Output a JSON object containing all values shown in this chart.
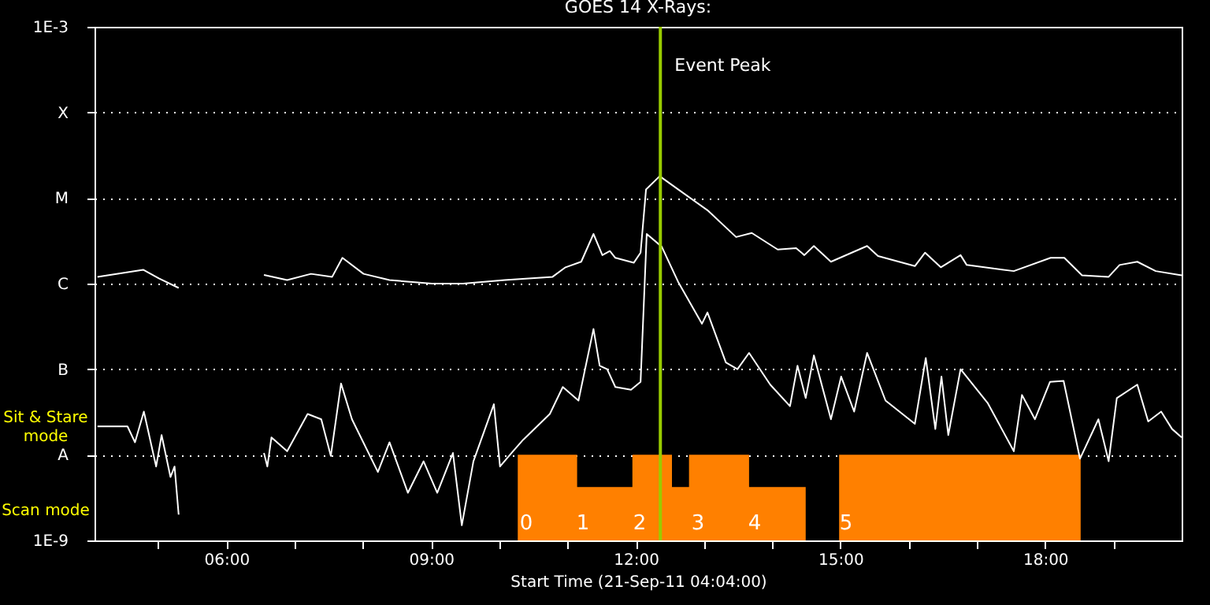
{
  "chart_data": {
    "type": "line",
    "title": "GOES 14 X-Rays:",
    "xlabel": "Start Time (21-Sep-11 04:04:00)",
    "xlim": [
      4.067,
      20.0
    ],
    "xticks": [
      {
        "value": 5,
        "label": null
      },
      {
        "value": 6,
        "label": "06:00"
      },
      {
        "value": 7,
        "label": null
      },
      {
        "value": 8,
        "label": null
      },
      {
        "value": 9,
        "label": "09:00"
      },
      {
        "value": 10,
        "label": null
      },
      {
        "value": 11,
        "label": null
      },
      {
        "value": 12,
        "label": "12:00"
      },
      {
        "value": 13,
        "label": null
      },
      {
        "value": 14,
        "label": null
      },
      {
        "value": 15,
        "label": "15:00"
      },
      {
        "value": 16,
        "label": null
      },
      {
        "value": 17,
        "label": null
      },
      {
        "value": 18,
        "label": "18:00"
      },
      {
        "value": 19,
        "label": null
      }
    ],
    "ylim": [
      1e-09,
      0.001
    ],
    "yticks": [
      {
        "value": 1e-09,
        "label": "1E-9"
      },
      {
        "value": 1e-08,
        "label": "A"
      },
      {
        "value": 1e-07,
        "label": "B"
      },
      {
        "value": 1e-06,
        "label": "C"
      },
      {
        "value": 1e-05,
        "label": "M"
      },
      {
        "value": 0.0001,
        "label": "X"
      },
      {
        "value": 0.001,
        "label": "1E-3"
      }
    ],
    "log": "y",
    "grid": "y",
    "series": [
      {
        "type": "area",
        "color": "#ff8000",
        "x": [
          10.27,
          11.14,
          11.95,
          12.53,
          12.78,
          13.66,
          14.49,
          14.7,
          14.98,
          18.52
        ],
        "values": [
          1e-08,
          4.2e-09,
          1e-08,
          4.2e-09,
          1e-08,
          4.2e-09,
          4.2e-09,
          null,
          1e-08,
          1e-08
        ]
      },
      {
        "color": "#ffffff",
        "x": [
          4.11,
          4.78,
          5.01,
          5.3,
          5.9,
          6.55,
          6.89,
          7.24,
          7.55,
          7.7,
          8.01,
          8.39,
          9.01,
          9.47,
          10.08,
          10.78,
          10.97,
          11.2,
          11.38,
          11.51,
          11.62,
          11.7,
          11.97,
          12.07,
          12.15,
          12.35,
          12.62,
          13.05,
          13.47,
          13.7,
          14.08,
          14.35,
          14.47,
          14.61,
          14.86,
          15.39,
          15.55,
          16.09,
          16.24,
          16.47,
          16.76,
          16.85,
          17.54,
          18.08,
          18.28,
          18.54,
          18.93,
          19.09,
          19.35,
          19.62,
          20.0
        ],
        "values": [
          1.2e-06,
          1.45e-06,
          1.15e-06,
          8.9e-07,
          null,
          1.26e-06,
          1.1e-06,
          1.3e-06,
          1.2e-06,
          2e-06,
          1.3e-06,
          1.1e-06,
          1e-06,
          1e-06,
          1.1e-06,
          1.2e-06,
          1.55e-06,
          1.8e-06,
          3.8e-06,
          2.15e-06,
          2.4e-06,
          2e-06,
          1.75e-06,
          2.3e-06,
          1.26e-05,
          1.8e-05,
          1.26e-05,
          7.2e-06,
          3.5e-06,
          3.9e-06,
          2.5e-06,
          2.6e-06,
          2.15e-06,
          2.75e-06,
          1.8e-06,
          2.75e-06,
          2.1e-06,
          1.6e-06,
          2.3e-06,
          1.55e-06,
          2.15e-06,
          1.65e-06,
          1.4e-06,
          2e-06,
          2e-06,
          1.25e-06,
          1.2e-06,
          1.65e-06,
          1.8e-06,
          1.4e-06,
          1.25e-06
        ]
      },
      {
        "color": "#ffffff",
        "x": [
          4.11,
          4.55,
          4.66,
          4.79,
          4.97,
          5.05,
          5.18,
          5.24,
          5.3,
          5.9,
          6.55,
          6.6,
          6.66,
          6.89,
          7.19,
          7.39,
          7.53,
          7.68,
          7.84,
          8.22,
          8.39,
          8.66,
          8.89,
          9.09,
          9.32,
          9.45,
          9.62,
          9.92,
          10.01,
          10.2,
          10.35,
          10.74,
          10.93,
          11.16,
          11.38,
          11.47,
          11.58,
          11.7,
          11.93,
          12.07,
          12.16,
          12.38,
          12.62,
          12.97,
          13.05,
          13.32,
          13.49,
          13.66,
          13.97,
          14.26,
          14.37,
          14.49,
          14.61,
          14.86,
          15.01,
          15.2,
          15.39,
          15.66,
          16.09,
          16.25,
          16.39,
          16.48,
          16.58,
          16.76,
          17.16,
          17.54,
          17.66,
          17.85,
          18.07,
          18.27,
          18.51,
          18.78,
          18.93,
          19.05,
          19.35,
          19.51,
          19.7,
          19.86,
          20.0
        ],
        "values": [
          2.15e-08,
          2.15e-08,
          1.4e-08,
          3.2e-08,
          7.3e-09,
          1.7e-08,
          5.5e-09,
          7.3e-09,
          2e-09,
          null,
          1.05e-08,
          7.3e-09,
          1.6e-08,
          1.1e-08,
          3e-08,
          2.6e-08,
          9.7e-09,
          6.8e-08,
          2.6e-08,
          6.3e-09,
          1.4e-08,
          3.6e-09,
          8.4e-09,
          3.6e-09,
          1.05e-08,
          1.5e-09,
          8.4e-09,
          3.9e-08,
          7.3e-09,
          1.1e-08,
          1.5e-08,
          3e-08,
          6.2e-08,
          4.3e-08,
          2.95e-07,
          1.1e-07,
          1e-07,
          6.2e-08,
          5.75e-08,
          7.1e-08,
          3.8e-06,
          2.7e-06,
          1.05e-06,
          3.4e-07,
          4.6e-07,
          1.2e-07,
          1e-07,
          1.55e-07,
          6.6e-08,
          3.7e-08,
          1.1e-07,
          4.6e-08,
          1.45e-07,
          2.6e-08,
          8.2e-08,
          3.2e-08,
          1.55e-07,
          4.3e-08,
          2.3e-08,
          1.35e-07,
          2e-08,
          8.2e-08,
          1.7e-08,
          1e-07,
          4e-08,
          1.1e-08,
          5e-08,
          2.6e-08,
          7.1e-08,
          7.3e-08,
          9e-09,
          2.6e-08,
          8.4e-09,
          4.6e-08,
          6.6e-08,
          2.45e-08,
          3.2e-08,
          2e-08,
          1.6e-08
        ]
      }
    ],
    "ref_lines": [
      {
        "axis": "x",
        "value": 12.36,
        "label": "Event Peak",
        "color": "#99cc00"
      }
    ],
    "annotations": [
      "Sit & Stare mode",
      "Scan mode",
      "0",
      "1",
      "2",
      "3",
      "4",
      "5"
    ]
  }
}
